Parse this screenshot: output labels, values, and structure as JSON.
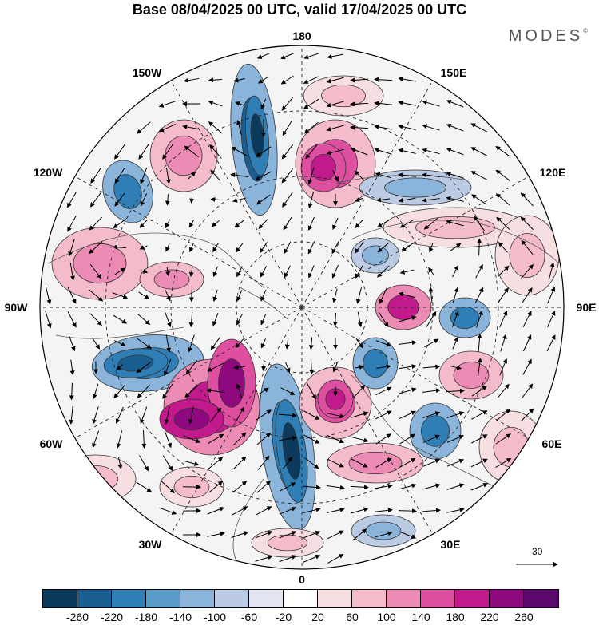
{
  "title": "Base 08/04/2025 00 UTC, valid 17/04/2025 00 UTC",
  "brand": {
    "name": "MODES",
    "mark": "©"
  },
  "longitude_labels": [
    "180",
    "150E",
    "120E",
    "90E",
    "60E",
    "30E",
    "0",
    "30W",
    "60W",
    "90W",
    "120W",
    "150W"
  ],
  "colorbar": {
    "ticks": [
      "-260",
      "-220",
      "-180",
      "-140",
      "-100",
      "-60",
      "-20",
      "20",
      "60",
      "100",
      "140",
      "180",
      "220",
      "260"
    ],
    "colors": [
      "#0c3a5c",
      "#1a5f91",
      "#2f7fb6",
      "#5a9cc8",
      "#8ab4d9",
      "#bccbe4",
      "#e2e4f1",
      "#ffffff",
      "#f7dfe1",
      "#f4bccb",
      "#ec8cb4",
      "#df4fa0",
      "#c21a8d",
      "#8e087e",
      "#5c0a6c"
    ]
  },
  "reference_vector": {
    "label": "30"
  }
}
